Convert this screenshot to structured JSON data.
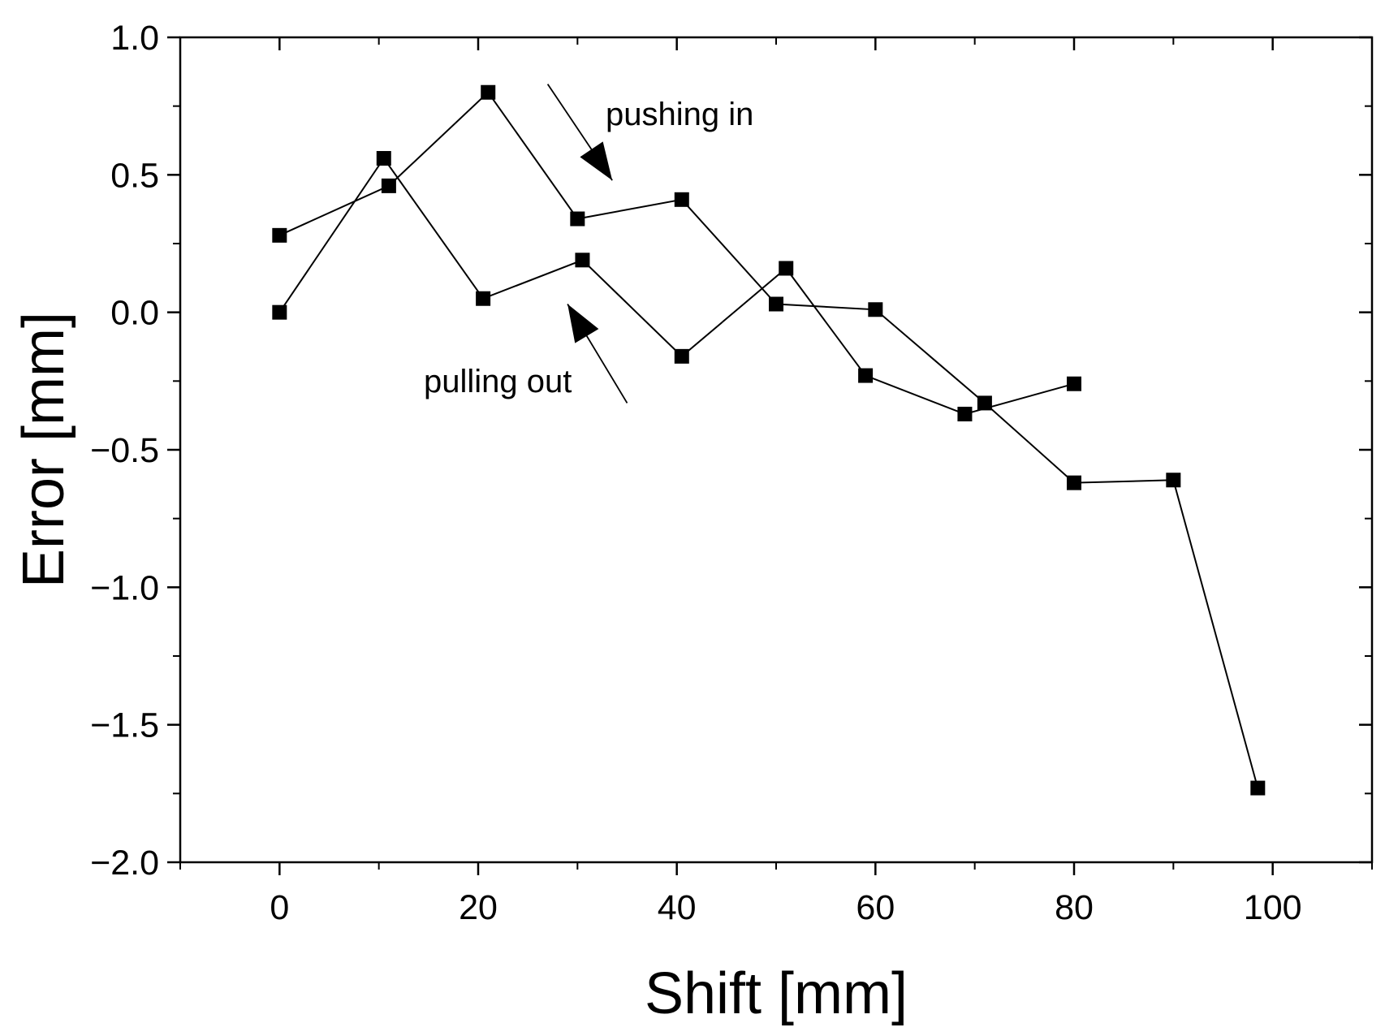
{
  "chart_data": {
    "type": "line",
    "title": "",
    "xlabel": "Shift [mm]",
    "ylabel": "Error [mm]",
    "xlim": [
      -10,
      110
    ],
    "ylim": [
      -2.0,
      1.0
    ],
    "xticks": [
      0,
      20,
      40,
      60,
      80,
      100
    ],
    "xtick_labels": [
      "0",
      "20",
      "40",
      "60",
      "80",
      "100"
    ],
    "yticks": [
      1.0,
      0.5,
      0.0,
      -0.5,
      -1.0,
      -1.5,
      -2.0
    ],
    "ytick_labels": [
      "1.0",
      "0.5",
      "0.0",
      "−0.5",
      "−1.0",
      "−1.5",
      "−2.0"
    ],
    "grid": false,
    "marker": "square",
    "line_color": "#000000",
    "series": [
      {
        "name": "pushing in",
        "x": [
          0,
          11,
          21,
          30,
          40.5,
          50,
          60,
          71,
          80,
          90,
          98.5
        ],
        "y": [
          0.28,
          0.46,
          0.8,
          0.34,
          0.41,
          0.03,
          0.01,
          -0.33,
          -0.62,
          -0.61,
          -1.73
        ]
      },
      {
        "name": "pulling out",
        "x": [
          0,
          10.5,
          20.5,
          30.5,
          40.5,
          51,
          59,
          69,
          80
        ],
        "y": [
          0.0,
          0.56,
          0.05,
          0.19,
          -0.16,
          0.16,
          -0.23,
          -0.37,
          -0.26
        ]
      }
    ],
    "annotations": [
      {
        "text": "pushing in",
        "arrow_from": [
          27,
          0.83
        ],
        "arrow_to": [
          33.5,
          0.48
        ]
      },
      {
        "text": "pulling out",
        "arrow_from": [
          35,
          -0.33
        ],
        "arrow_to": [
          29,
          0.03
        ]
      }
    ]
  }
}
